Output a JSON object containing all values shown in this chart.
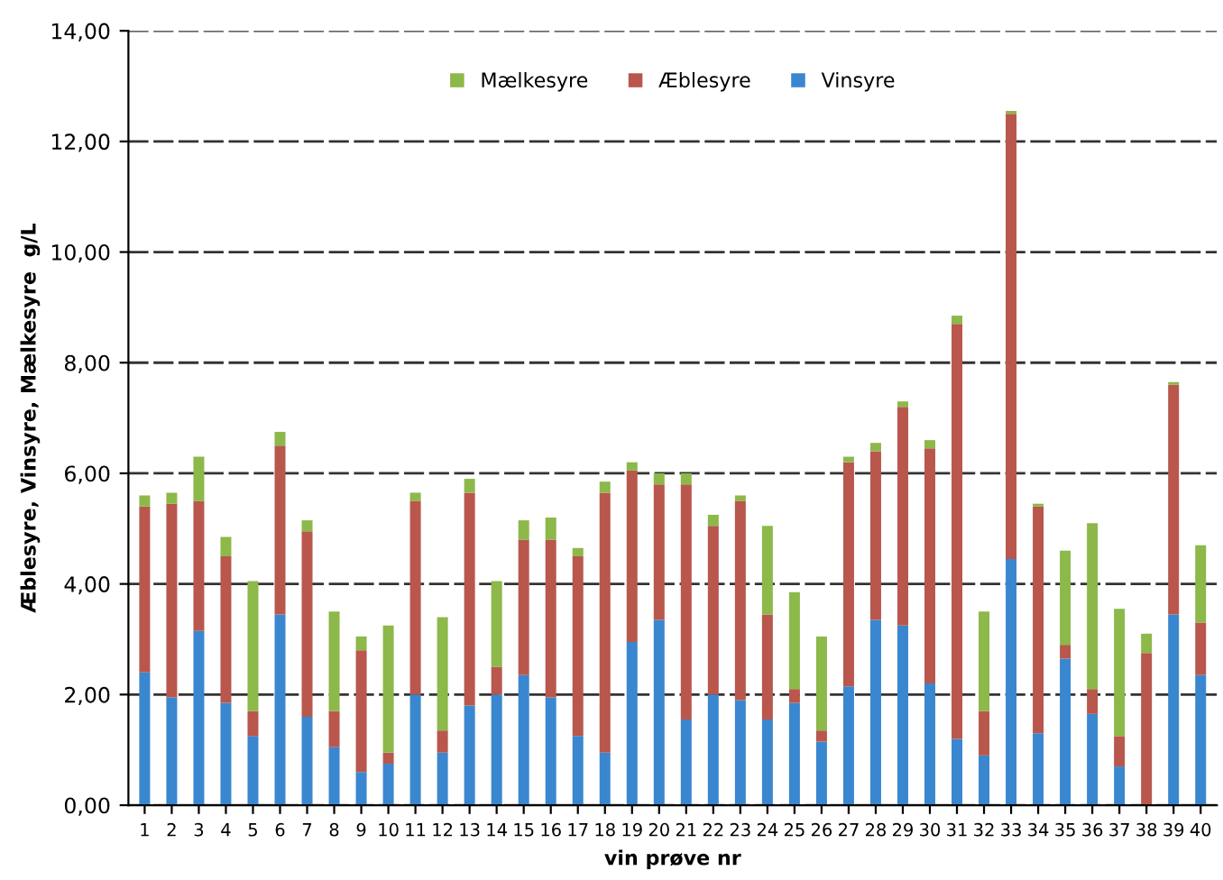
{
  "chart_data": {
    "type": "bar",
    "stacked": true,
    "xlabel": "vin prøve nr",
    "ylabel": "Æblesyre, Vinsyre, Mælkesyre  g/L",
    "categories": [
      "1",
      "2",
      "3",
      "4",
      "5",
      "6",
      "7",
      "8",
      "9",
      "10",
      "11",
      "12",
      "13",
      "14",
      "15",
      "16",
      "17",
      "18",
      "19",
      "20",
      "21",
      "22",
      "23",
      "24",
      "25",
      "26",
      "27",
      "28",
      "29",
      "30",
      "31",
      "32",
      "33",
      "34",
      "35",
      "36",
      "37",
      "38",
      "39",
      "40"
    ],
    "series": [
      {
        "name": "Vinsyre",
        "color": "#3a87d0",
        "values": [
          2.4,
          1.95,
          3.15,
          1.85,
          1.25,
          3.45,
          1.6,
          1.05,
          0.6,
          0.75,
          2.0,
          0.95,
          1.8,
          2.0,
          2.35,
          1.95,
          1.25,
          0.95,
          2.95,
          3.35,
          1.55,
          2.0,
          1.9,
          1.55,
          1.85,
          1.15,
          2.15,
          3.35,
          3.25,
          2.2,
          1.2,
          0.9,
          4.45,
          1.3,
          2.65,
          1.65,
          0.7,
          0,
          3.45,
          2.35
        ]
      },
      {
        "name": "Æblesyre",
        "color": "#b9574c",
        "values": [
          3.0,
          3.5,
          2.35,
          2.65,
          0.45,
          3.05,
          3.35,
          0.65,
          2.2,
          0.2,
          3.5,
          0.4,
          3.85,
          0.5,
          2.45,
          2.85,
          3.25,
          4.7,
          3.1,
          2.45,
          4.25,
          3.05,
          3.6,
          1.9,
          0.25,
          0.2,
          4.05,
          3.05,
          3.95,
          4.25,
          7.5,
          0.8,
          8.05,
          4.1,
          0.25,
          0.45,
          0.55,
          2.75,
          4.15,
          0.95
        ]
      },
      {
        "name": "Mælkesyre",
        "color": "#8db84a",
        "values": [
          0.2,
          0.2,
          0.8,
          0.35,
          2.35,
          0.25,
          0.2,
          1.8,
          0.25,
          2.3,
          0.15,
          2.05,
          0.25,
          1.55,
          0.35,
          0.4,
          0.15,
          0.2,
          0.15,
          0.2,
          0.2,
          0.2,
          0.1,
          1.6,
          1.75,
          1.7,
          0.1,
          0.15,
          0.1,
          0.15,
          0.15,
          1.8,
          0.05,
          0.05,
          1.7,
          3.0,
          2.3,
          0.35,
          0.05,
          1.4
        ]
      }
    ],
    "ylim": [
      0,
      14
    ],
    "yticks": [
      {
        "value": 0,
        "label": "0,00"
      },
      {
        "value": 2,
        "label": "2,00"
      },
      {
        "value": 4,
        "label": "4,00"
      },
      {
        "value": 6,
        "label": "6,00"
      },
      {
        "value": 8,
        "label": "8,00"
      },
      {
        "value": 10,
        "label": "10,00"
      },
      {
        "value": 12,
        "label": "12,00"
      },
      {
        "value": 14,
        "label": "14,00"
      }
    ],
    "grid": "y",
    "legend": "top"
  }
}
